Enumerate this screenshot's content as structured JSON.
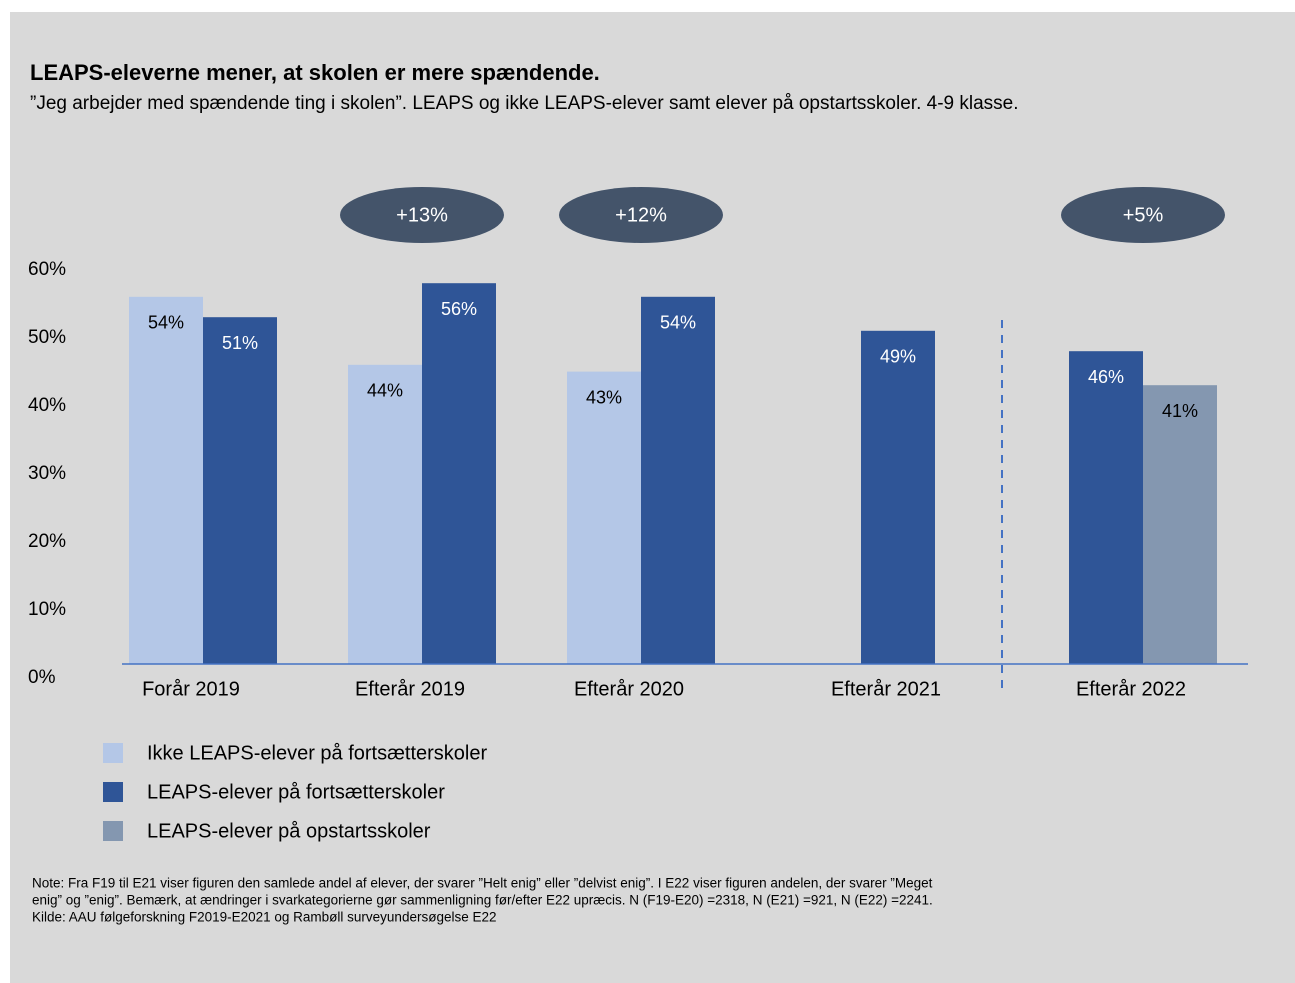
{
  "chart_data": {
    "type": "bar",
    "title": "LEAPS-eleverne mener, at skolen er mere spændende.",
    "subtitle": "”Jeg arbejder med spændende ting i skolen”. LEAPS og ikke LEAPS-elever samt elever på opstartsskoler. 4-9 klasse.",
    "categories": [
      "Forår 2019",
      "Efterår 2019",
      "Efterår 2020",
      "Efterår 2021",
      "Efterår 2022"
    ],
    "series": [
      {
        "name": "Ikke LEAPS-elever på fortsætterskoler",
        "color": "#b4c7e7",
        "values": [
          54,
          44,
          43,
          null,
          null
        ],
        "value_labels": [
          "54%",
          "44%",
          "43%",
          null,
          null
        ]
      },
      {
        "name": "LEAPS-elever på fortsætterskoler",
        "color": "#2f5597",
        "values": [
          51,
          56,
          54,
          49,
          46
        ],
        "value_labels": [
          "51%",
          "56%",
          "54%",
          "49%",
          "46%"
        ]
      },
      {
        "name": "LEAPS-elever på opstartsskoler",
        "color": "#8497b0",
        "values": [
          null,
          null,
          null,
          null,
          41
        ],
        "value_labels": [
          null,
          null,
          null,
          null,
          "41%"
        ]
      }
    ],
    "annotations": [
      null,
      "+13%",
      "+12%",
      null,
      "+5%"
    ],
    "ylim": [
      0,
      60
    ],
    "yticks": [
      {
        "value": 0,
        "label": "0%"
      },
      {
        "value": 10,
        "label": "10%"
      },
      {
        "value": 20,
        "label": "20%"
      },
      {
        "value": 30,
        "label": "30%"
      },
      {
        "value": 40,
        "label": "40%"
      },
      {
        "value": 50,
        "label": "50%"
      },
      {
        "value": 60,
        "label": "60%"
      }
    ],
    "grid": false,
    "legend": "bottom",
    "note": [
      "Note:  Fra F19 til E21 viser figuren den samlede andel af elever, der svarer ”Helt enig” eller ”delvist enig”. I E22 viser figuren andelen, der svarer ”Meget",
      "enig” og ”enig”. Bemærk, at ændringer i svarkategorierne gør sammenligning før/efter E22 upræcis. N (F19-E20) =2318, N (E21) =921, N (E22) =2241.",
      "Kilde: AAU følgeforskning F2019-E2021 og Rambøll surveyundersøgelse E22"
    ]
  }
}
